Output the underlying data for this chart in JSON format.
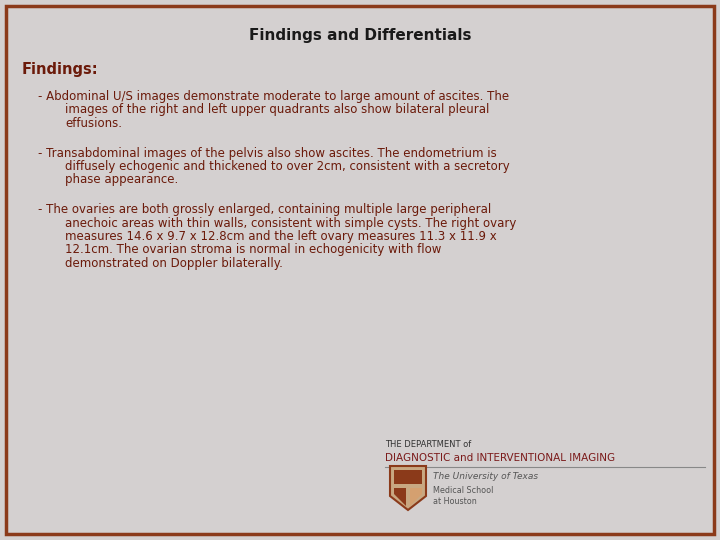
{
  "title": "Findings and Differentials",
  "title_fontsize": 11,
  "title_color": "#1a1a1a",
  "background_color": "#d4d0d0",
  "border_color": "#8B3A1A",
  "text_color": "#6B1A0A",
  "findings_label": "Findings:",
  "findings_label_fontsize": 10.5,
  "body_fontsize": 8.5,
  "bullet1_line1": "- Abdominal U/S images demonstrate moderate to large amount of ascites. The",
  "bullet1_line2": "images of the right and left upper quadrants also show bilateral pleural",
  "bullet1_line3": "effusions.",
  "bullet2_line1": "- Transabdominal images of the pelvis also show ascites. The endometrium is",
  "bullet2_line2": "diffusely echogenic and thickened to over 2cm, consistent with a secretory",
  "bullet2_line3": "phase appearance.",
  "bullet3_line1": "- The ovaries are both grossly enlarged, containing multiple large peripheral",
  "bullet3_line2": "anechoic areas with thin walls, consistent with simple cysts. The right ovary",
  "bullet3_line3": "measures 14.6 x 9.7 x 12.8cm and the left ovary measures 11.3 x 11.9 x",
  "bullet3_line4": "12.1cm. The ovarian stroma is normal in echogenicity with flow",
  "bullet3_line5": "demonstrated on Doppler bilaterally.",
  "logo_dept_line1": "THE DEPARTMENT of",
  "logo_dept_line2": "DIAGNOSTIC and INTERVENTIONAL IMAGING",
  "logo_univ_line1": "The University of Texas",
  "logo_univ_line2": "Medical School",
  "logo_univ_line3": "at Houston",
  "logo_text_color": "#7B1A1A",
  "logo_dept1_color": "#333333",
  "logo_dept2_color": "#7B1A1A",
  "logo_univ_color": "#555555"
}
